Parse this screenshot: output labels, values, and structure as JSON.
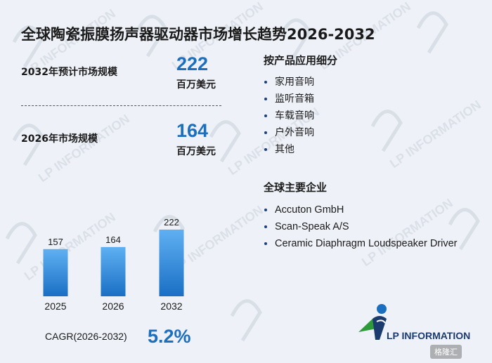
{
  "title": "全球陶瓷振膜扬声器驱动器市场增长趋势2026-2032",
  "stats": [
    {
      "label": "2032年预计市场规模",
      "value": "222",
      "unit": "百万美元"
    },
    {
      "label": "2026年市场规模",
      "value": "164",
      "unit": "百万美元"
    }
  ],
  "segments": {
    "title": "按产品应用细分",
    "items": [
      "家用音响",
      "监听音箱",
      "车载音响",
      "户外音响",
      "其他"
    ]
  },
  "companies": {
    "title": "全球主要企业",
    "items": [
      "Accuton GmbH",
      "Scan-Speak A/S",
      "Ceramic Diaphragm Loudspeaker Driver"
    ]
  },
  "cagr": {
    "label": "CAGR(2026-2032)",
    "value": "5.2%"
  },
  "logo": {
    "text": "LP INFORMATION",
    "icon": "lp-information-logo-icon"
  },
  "watermark": {
    "text": "LP INFORMATION"
  },
  "credit": {
    "text": "格隆汇"
  },
  "colors": {
    "accent": "#1c6fbe",
    "bar_top": "#5fb0f2",
    "bar_bottom": "#1a6fc4"
  },
  "chart_data": {
    "type": "bar",
    "title": "",
    "xlabel": "",
    "ylabel": "",
    "categories": [
      "2025",
      "2026",
      "2032"
    ],
    "values": [
      157,
      164,
      222
    ],
    "ylim": [
      0,
      222
    ],
    "grid": false,
    "legend": "none"
  }
}
